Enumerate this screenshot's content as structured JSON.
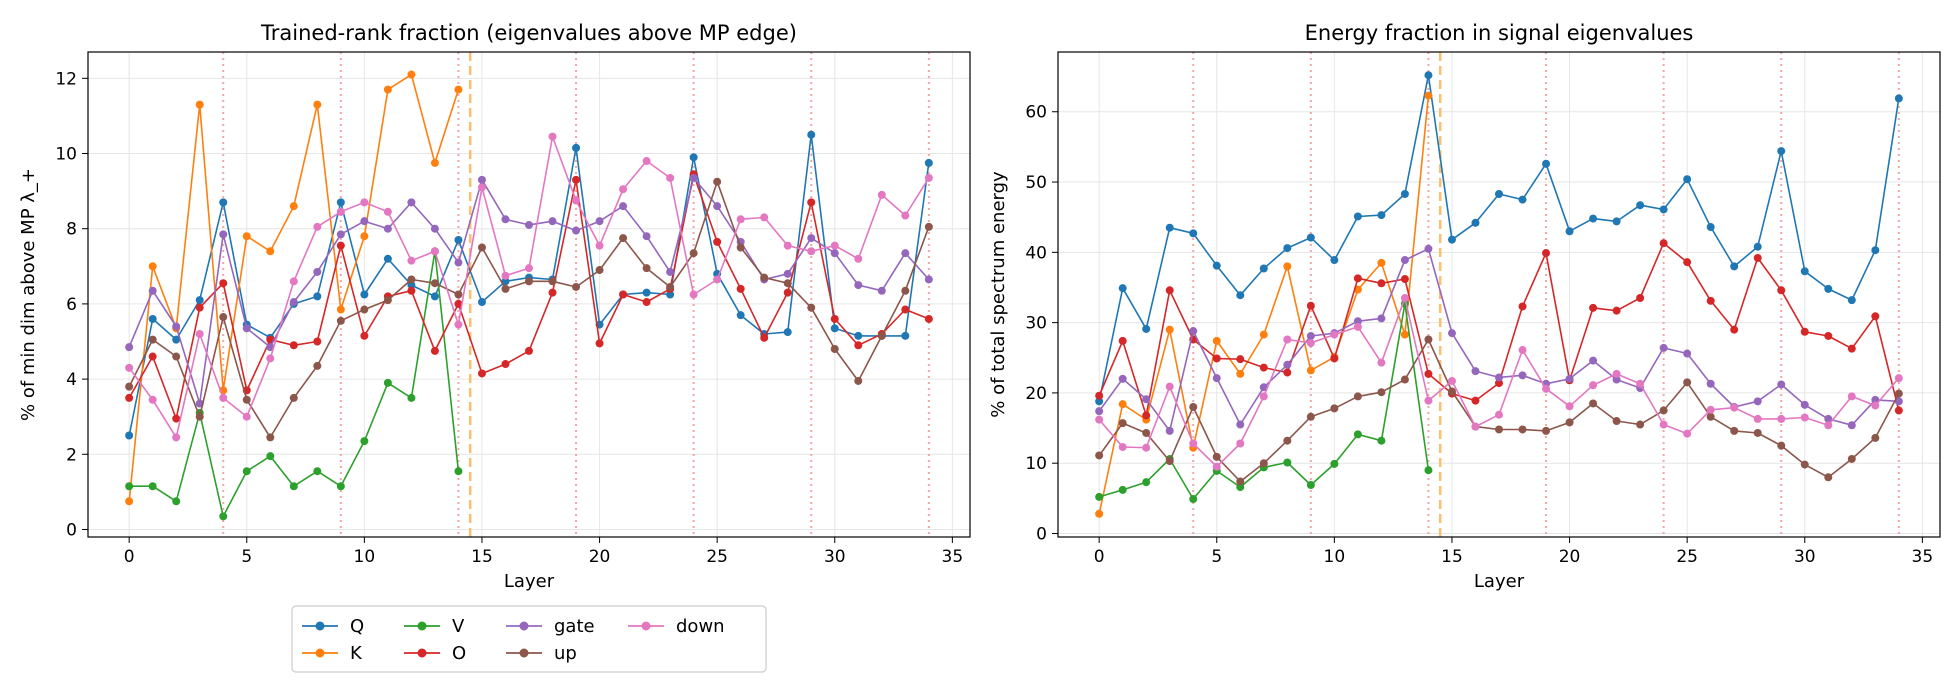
{
  "series_styles": [
    {
      "key": "Q",
      "name": "Q",
      "color": "#1f77b4"
    },
    {
      "key": "K",
      "name": "K",
      "color": "#ff7f0e"
    },
    {
      "key": "V",
      "name": "V",
      "color": "#2ca02c"
    },
    {
      "key": "O",
      "name": "O",
      "color": "#d62728"
    },
    {
      "key": "gate",
      "name": "gate",
      "color": "#9467bd"
    },
    {
      "key": "up",
      "name": "up",
      "color": "#8c564b"
    },
    {
      "key": "down",
      "name": "down",
      "color": "#e377c2"
    }
  ],
  "marker_lines": {
    "dotted_color": "#f4a6a6",
    "dotted_x": [
      4,
      9,
      14,
      19,
      24,
      29,
      34
    ],
    "dashed_color": "#fdbf6f",
    "dashed_x": 14.5
  },
  "chart_data": [
    {
      "type": "line",
      "title": "Trained-rank fraction (eigenvalues above MP edge)",
      "xlabel": "Layer",
      "ylabel": "% of min dim above MP λ_+",
      "xlim": [
        -1.75,
        35.75
      ],
      "ylim": [
        -0.2,
        12.7
      ],
      "xticks": [
        0,
        5,
        10,
        15,
        20,
        25,
        30,
        35
      ],
      "yticks": [
        0,
        2,
        4,
        6,
        8,
        10,
        12
      ],
      "grid": true,
      "legend": "below",
      "series": [
        {
          "name": "Q",
          "x": [
            0,
            1,
            2,
            3,
            4,
            5,
            6,
            7,
            8,
            9,
            10,
            11,
            12,
            13,
            14,
            15,
            16,
            17,
            18,
            19,
            20,
            21,
            22,
            23,
            24,
            25,
            26,
            27,
            28,
            29,
            30,
            31,
            32,
            33,
            34
          ],
          "values": [
            2.5,
            5.6,
            5.05,
            6.1,
            8.7,
            5.45,
            5.1,
            6.0,
            6.2,
            8.7,
            6.25,
            7.2,
            6.5,
            6.2,
            7.7,
            6.05,
            6.6,
            6.7,
            6.65,
            10.15,
            5.45,
            6.25,
            6.3,
            6.25,
            9.9,
            6.8,
            5.7,
            5.2,
            5.25,
            10.5,
            5.35,
            5.15,
            5.15,
            5.15,
            9.75
          ]
        },
        {
          "name": "K",
          "x": [
            0,
            1,
            2,
            3,
            4,
            5,
            6,
            7,
            8,
            9,
            10,
            11,
            12,
            13,
            14
          ],
          "values": [
            0.75,
            7.0,
            5.35,
            11.3,
            3.7,
            7.8,
            7.4,
            8.6,
            11.3,
            5.85,
            7.8,
            11.7,
            12.1,
            9.75,
            11.7
          ]
        },
        {
          "name": "V",
          "x": [
            0,
            1,
            2,
            3,
            4,
            5,
            6,
            7,
            8,
            9,
            10,
            11,
            12,
            13,
            14
          ],
          "values": [
            1.15,
            1.15,
            0.75,
            3.1,
            0.35,
            1.55,
            1.95,
            1.15,
            1.55,
            1.15,
            2.35,
            3.9,
            3.5,
            7.4,
            1.55
          ]
        },
        {
          "name": "O",
          "x": [
            0,
            1,
            2,
            3,
            4,
            5,
            6,
            7,
            8,
            9,
            10,
            11,
            12,
            13,
            14,
            15,
            16,
            17,
            18,
            19,
            20,
            21,
            22,
            23,
            24,
            25,
            26,
            27,
            28,
            29,
            30,
            31,
            32,
            33,
            34
          ],
          "values": [
            3.5,
            4.6,
            2.95,
            5.9,
            6.55,
            3.7,
            5.05,
            4.9,
            5.0,
            7.55,
            5.15,
            6.2,
            6.35,
            4.75,
            6.0,
            4.15,
            4.4,
            4.75,
            6.3,
            9.3,
            4.95,
            6.25,
            6.05,
            6.4,
            9.45,
            7.65,
            6.4,
            5.1,
            6.3,
            8.7,
            5.6,
            4.9,
            5.2,
            5.85,
            5.6
          ]
        },
        {
          "name": "gate",
          "x": [
            0,
            1,
            2,
            3,
            4,
            5,
            6,
            7,
            8,
            9,
            10,
            11,
            12,
            13,
            14,
            15,
            16,
            17,
            18,
            19,
            20,
            21,
            22,
            23,
            24,
            25,
            26,
            27,
            28,
            29,
            30,
            31,
            32,
            33,
            34
          ],
          "values": [
            4.85,
            6.35,
            5.4,
            3.35,
            7.85,
            5.35,
            4.85,
            6.05,
            6.85,
            7.85,
            8.2,
            8.0,
            8.7,
            8.0,
            7.1,
            9.3,
            8.25,
            8.1,
            8.2,
            7.95,
            8.2,
            8.6,
            7.8,
            6.85,
            9.35,
            8.6,
            7.65,
            6.65,
            6.8,
            7.75,
            7.35,
            6.5,
            6.35,
            7.35,
            6.65
          ]
        },
        {
          "name": "up",
          "x": [
            0,
            1,
            2,
            3,
            4,
            5,
            6,
            7,
            8,
            9,
            10,
            11,
            12,
            13,
            14,
            15,
            16,
            17,
            18,
            19,
            20,
            21,
            22,
            23,
            24,
            25,
            26,
            27,
            28,
            29,
            30,
            31,
            32,
            33,
            34
          ],
          "values": [
            3.8,
            5.05,
            4.6,
            3.0,
            5.65,
            3.45,
            2.45,
            3.5,
            4.35,
            5.55,
            5.85,
            6.1,
            6.65,
            6.55,
            6.25,
            7.5,
            6.4,
            6.6,
            6.6,
            6.45,
            6.9,
            7.75,
            6.95,
            6.45,
            7.35,
            9.25,
            7.5,
            6.7,
            6.55,
            5.9,
            4.8,
            3.95,
            5.15,
            6.35,
            8.05
          ]
        },
        {
          "name": "down",
          "x": [
            0,
            1,
            2,
            3,
            4,
            5,
            6,
            7,
            8,
            9,
            10,
            11,
            12,
            13,
            14,
            15,
            16,
            17,
            18,
            19,
            20,
            21,
            22,
            23,
            24,
            25,
            26,
            27,
            28,
            29,
            30,
            31,
            32,
            33,
            34
          ],
          "values": [
            4.3,
            3.45,
            2.45,
            5.2,
            3.5,
            3.0,
            4.55,
            6.6,
            8.05,
            8.45,
            8.7,
            8.45,
            7.15,
            7.4,
            5.45,
            9.1,
            6.75,
            6.95,
            10.45,
            8.75,
            7.55,
            9.05,
            9.8,
            9.35,
            6.25,
            6.65,
            8.25,
            8.3,
            7.55,
            7.4,
            7.55,
            7.2,
            8.9,
            8.35,
            9.35
          ]
        }
      ]
    },
    {
      "type": "line",
      "title": "Energy fraction in signal eigenvalues",
      "xlabel": "Layer",
      "ylabel": "% of total spectrum energy",
      "xlim": [
        -1.75,
        35.75
      ],
      "ylim": [
        -0.5,
        68.5
      ],
      "xticks": [
        0,
        5,
        10,
        15,
        20,
        25,
        30,
        35
      ],
      "yticks": [
        0,
        10,
        20,
        30,
        40,
        50,
        60
      ],
      "grid": true,
      "series": [
        {
          "name": "Q",
          "x": [
            0,
            1,
            2,
            3,
            4,
            5,
            6,
            7,
            8,
            9,
            10,
            11,
            12,
            13,
            14,
            15,
            16,
            17,
            18,
            19,
            20,
            21,
            22,
            23,
            24,
            25,
            26,
            27,
            28,
            29,
            30,
            31,
            32,
            33,
            34
          ],
          "values": [
            18.8,
            34.9,
            29.1,
            43.5,
            42.7,
            38.1,
            33.9,
            37.7,
            40.6,
            42.1,
            38.9,
            45.1,
            45.3,
            48.3,
            65.2,
            41.8,
            44.2,
            48.3,
            47.5,
            52.6,
            43.0,
            44.8,
            44.4,
            46.7,
            46.1,
            50.4,
            43.6,
            38.0,
            40.8,
            54.4,
            37.3,
            34.8,
            33.2,
            40.3,
            61.9
          ]
        },
        {
          "name": "K",
          "x": [
            0,
            1,
            2,
            3,
            4,
            5,
            6,
            7,
            8,
            9,
            10,
            11,
            12,
            13,
            14
          ],
          "values": [
            2.8,
            18.4,
            16.2,
            29.0,
            12.2,
            27.4,
            22.7,
            28.3,
            38.0,
            23.2,
            25.1,
            34.7,
            38.5,
            28.3,
            62.3
          ]
        },
        {
          "name": "V",
          "x": [
            0,
            1,
            2,
            3,
            4,
            5,
            6,
            7,
            8,
            9,
            10,
            11,
            12,
            13,
            14
          ],
          "values": [
            5.2,
            6.2,
            7.3,
            10.6,
            4.9,
            8.9,
            6.6,
            9.4,
            10.1,
            6.9,
            9.9,
            14.1,
            13.2,
            32.7,
            9.0
          ]
        },
        {
          "name": "O",
          "x": [
            0,
            1,
            2,
            3,
            4,
            5,
            6,
            7,
            8,
            9,
            10,
            11,
            12,
            13,
            14,
            15,
            16,
            17,
            18,
            19,
            20,
            21,
            22,
            23,
            24,
            25,
            26,
            27,
            28,
            29,
            30,
            31,
            32,
            33,
            34
          ],
          "values": [
            19.6,
            27.4,
            16.8,
            34.6,
            27.6,
            24.9,
            24.8,
            23.6,
            22.9,
            32.4,
            24.9,
            36.3,
            35.6,
            36.2,
            22.7,
            19.9,
            18.9,
            21.4,
            32.3,
            39.9,
            21.8,
            32.1,
            31.7,
            33.5,
            41.3,
            38.6,
            33.1,
            29.0,
            39.2,
            34.6,
            28.7,
            28.1,
            26.3,
            30.9,
            17.5
          ]
        },
        {
          "name": "gate",
          "x": [
            0,
            1,
            2,
            3,
            4,
            5,
            6,
            7,
            8,
            9,
            10,
            11,
            12,
            13,
            14,
            15,
            16,
            17,
            18,
            19,
            20,
            21,
            22,
            23,
            24,
            25,
            26,
            27,
            28,
            29,
            30,
            31,
            32,
            33,
            34
          ],
          "values": [
            17.4,
            22.0,
            19.1,
            14.6,
            28.8,
            22.1,
            15.5,
            20.8,
            24.0,
            28.1,
            28.5,
            30.2,
            30.6,
            38.9,
            40.5,
            28.5,
            23.1,
            22.2,
            22.5,
            21.3,
            22.0,
            24.6,
            21.9,
            20.7,
            26.4,
            25.6,
            21.3,
            18.0,
            18.8,
            21.2,
            18.3,
            16.3,
            15.4,
            19.0,
            18.8
          ]
        },
        {
          "name": "up",
          "x": [
            0,
            1,
            2,
            3,
            4,
            5,
            6,
            7,
            8,
            9,
            10,
            11,
            12,
            13,
            14,
            15,
            16,
            17,
            18,
            19,
            20,
            21,
            22,
            23,
            24,
            25,
            26,
            27,
            28,
            29,
            30,
            31,
            32,
            33,
            34
          ],
          "values": [
            11.1,
            15.7,
            14.3,
            10.3,
            18.0,
            10.9,
            7.4,
            10.0,
            13.2,
            16.6,
            17.8,
            19.5,
            20.1,
            21.9,
            27.6,
            20.2,
            15.2,
            14.8,
            14.8,
            14.6,
            15.8,
            18.5,
            16.0,
            15.5,
            17.5,
            21.5,
            16.6,
            14.6,
            14.3,
            12.5,
            9.8,
            8.0,
            10.6,
            13.6,
            19.9
          ]
        },
        {
          "name": "down",
          "x": [
            0,
            1,
            2,
            3,
            4,
            5,
            6,
            7,
            8,
            9,
            10,
            11,
            12,
            13,
            14,
            15,
            16,
            17,
            18,
            19,
            20,
            21,
            22,
            23,
            24,
            25,
            26,
            27,
            28,
            29,
            30,
            31,
            32,
            33,
            34
          ],
          "values": [
            16.2,
            12.3,
            12.2,
            20.9,
            12.8,
            9.5,
            12.8,
            19.5,
            27.6,
            27.1,
            28.3,
            29.4,
            24.3,
            33.5,
            18.9,
            21.7,
            15.2,
            16.9,
            26.1,
            20.6,
            18.1,
            21.1,
            22.7,
            21.3,
            15.5,
            14.2,
            17.6,
            17.9,
            16.3,
            16.3,
            16.5,
            15.4,
            19.5,
            18.2,
            22.1
          ]
        }
      ]
    }
  ]
}
